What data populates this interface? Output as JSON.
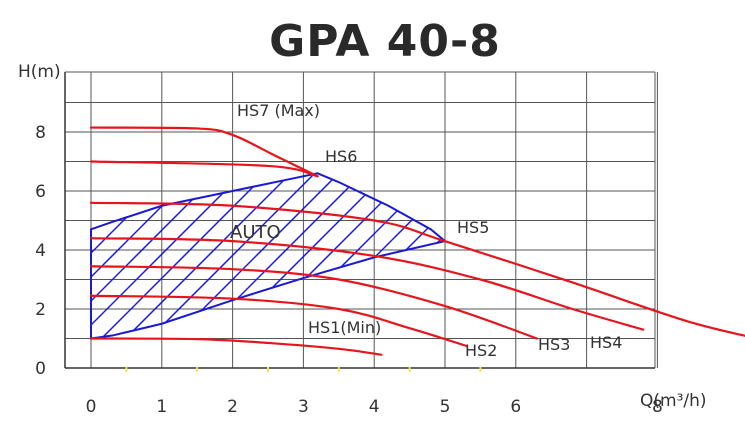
{
  "chart_data": {
    "type": "line",
    "title": "GPA 40-8",
    "xlabel": "Q(m³/h)",
    "ylabel": "H(m)",
    "xlim": [
      0,
      9.5
    ],
    "ylim": [
      0,
      9.5
    ],
    "xticks": [
      0,
      1,
      2,
      3,
      4,
      5,
      6,
      8
    ],
    "yticks": [
      0,
      2,
      4,
      6,
      8
    ],
    "grid": true,
    "series": [
      {
        "name": "HS7 (Max)",
        "x": [
          0,
          1.5,
          2.0,
          2.6,
          3.2
        ],
        "y": [
          8.15,
          8.12,
          7.9,
          7.2,
          6.5
        ]
      },
      {
        "name": "HS6",
        "x": [
          0,
          2.5,
          3.2
        ],
        "y": [
          7.0,
          6.85,
          6.5
        ]
      },
      {
        "name": "HS5",
        "x": [
          0,
          2.0,
          4.0,
          5.0,
          6.8,
          8.4,
          9.5
        ],
        "y": [
          5.6,
          5.5,
          5.0,
          4.3,
          2.9,
          1.6,
          0.95
        ]
      },
      {
        "name": "HS4",
        "x": [
          0,
          2.0,
          4.0,
          5.5,
          6.8,
          7.8
        ],
        "y": [
          4.4,
          4.3,
          3.8,
          3.0,
          2.0,
          1.3
        ]
      },
      {
        "name": "HS3",
        "x": [
          0,
          2.0,
          3.5,
          5.0,
          6.3
        ],
        "y": [
          3.45,
          3.35,
          3.0,
          2.1,
          1.0
        ]
      },
      {
        "name": "HS2",
        "x": [
          0,
          2.0,
          3.5,
          4.5,
          5.3
        ],
        "y": [
          2.45,
          2.35,
          2.0,
          1.35,
          0.75
        ]
      },
      {
        "name": "HS1(Min)",
        "x": [
          0,
          1.5,
          2.5,
          3.5,
          4.1
        ],
        "y": [
          1.0,
          0.98,
          0.85,
          0.65,
          0.45
        ]
      }
    ],
    "annotations": [
      "AUTO"
    ],
    "auto_region": {
      "x": [
        0,
        0,
        0.3,
        1.0,
        2.0,
        2.7,
        3.2,
        3.5,
        4.2,
        4.8,
        5.0,
        4.0,
        3.0,
        2.0,
        1.0,
        0.3,
        0
      ],
      "y": [
        1.5,
        4.7,
        4.95,
        5.5,
        6.0,
        6.35,
        6.6,
        6.3,
        5.5,
        4.7,
        4.3,
        3.75,
        3.05,
        2.3,
        1.5,
        1.1,
        1.0
      ]
    },
    "colors": {
      "curve": "#e8141c",
      "auto": "#1a1ad6",
      "grid": "#555555"
    }
  }
}
